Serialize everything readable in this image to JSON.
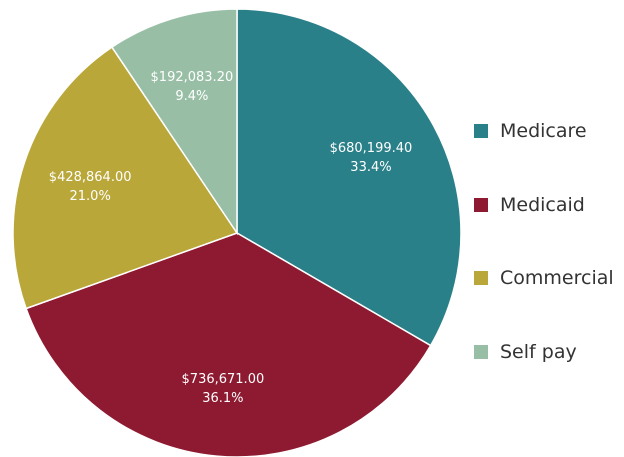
{
  "chart_data": {
    "type": "pie",
    "title": "",
    "legend_position": "right",
    "slices": [
      {
        "name": "Medicare",
        "value": 680199.4,
        "value_label": "$680,199.40",
        "percent_label": "33.4%",
        "color": "#2a8089"
      },
      {
        "name": "Medicaid",
        "value": 736671.0,
        "value_label": "$736,671.00",
        "percent_label": "36.1%",
        "color": "#8e1a31"
      },
      {
        "name": "Commercial",
        "value": 428864.0,
        "value_label": "$428,864.00",
        "percent_label": "21.0%",
        "color": "#b9a739"
      },
      {
        "name": "Self pay",
        "value": 192083.2,
        "value_label": "$192,083.20",
        "percent_label": "9.4%",
        "color": "#98bfa5"
      }
    ]
  }
}
